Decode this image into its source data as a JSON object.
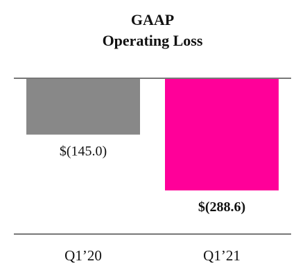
{
  "chart_data": {
    "type": "bar",
    "title": "GAAP",
    "subtitle": "Operating Loss",
    "categories": [
      "Q1’20",
      "Q1’21"
    ],
    "values": [
      -145.0,
      -288.6
    ],
    "value_labels": [
      "$(145.0)",
      "$(288.6)"
    ],
    "bar_colors": [
      "#888888",
      "#ff0099"
    ],
    "value_label_bold": [
      false,
      true
    ],
    "ylim": [
      -320,
      0
    ],
    "grid": false,
    "legend": "none",
    "baseline_color": "#777777"
  }
}
